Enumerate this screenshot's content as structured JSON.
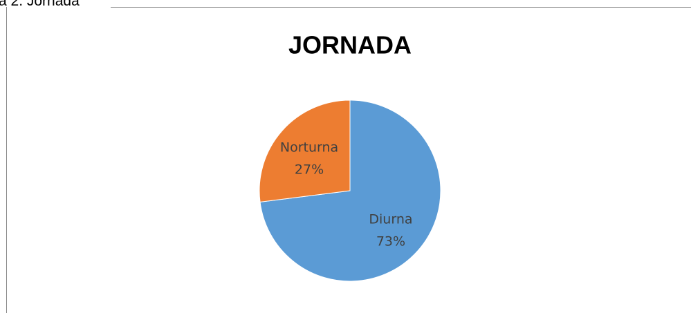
{
  "caption": "a 2. Jornada",
  "chart_data": {
    "type": "pie",
    "title": "JORNADA",
    "categories": [
      "Diurna",
      "Norturna"
    ],
    "values": [
      73,
      27
    ],
    "value_labels": [
      "73%",
      "27%"
    ],
    "colors": [
      "#5b9bd5",
      "#ed7d31"
    ]
  }
}
